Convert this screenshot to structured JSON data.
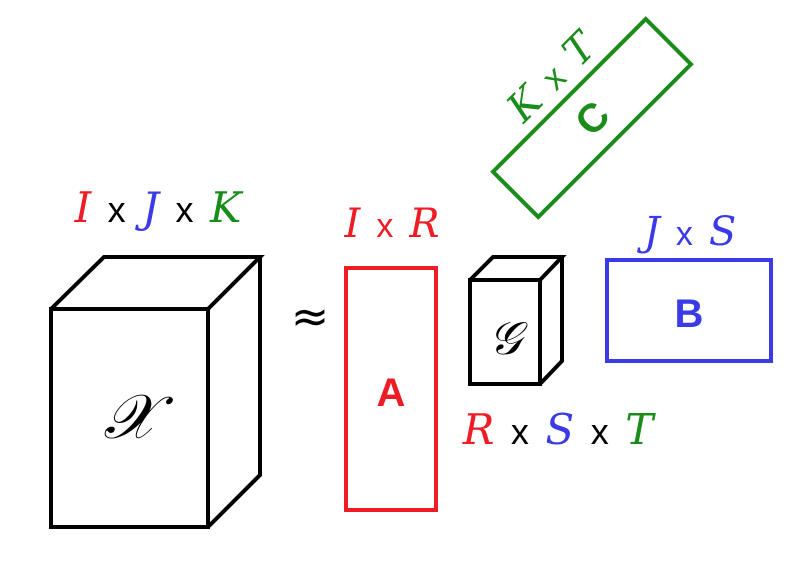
{
  "colors": {
    "red": "#ee1c25",
    "blue": "#3a3ae6",
    "green": "#1a8c1a",
    "black": "#000000"
  },
  "tensor_x": {
    "symbol": "𝒳",
    "dims": [
      "I",
      "x",
      "J",
      "x",
      "K"
    ]
  },
  "approx_symbol": "≈",
  "matrix_a": {
    "label": "A",
    "dims": [
      "I",
      "x",
      "R"
    ]
  },
  "core_g": {
    "symbol": "𝒢",
    "dims": [
      "R",
      "x",
      "S",
      "x",
      "T"
    ]
  },
  "matrix_b": {
    "label": "B",
    "dims": [
      "J",
      "x",
      "S"
    ]
  },
  "matrix_c": {
    "label": "C",
    "dims": [
      "K",
      "x",
      "T"
    ]
  }
}
